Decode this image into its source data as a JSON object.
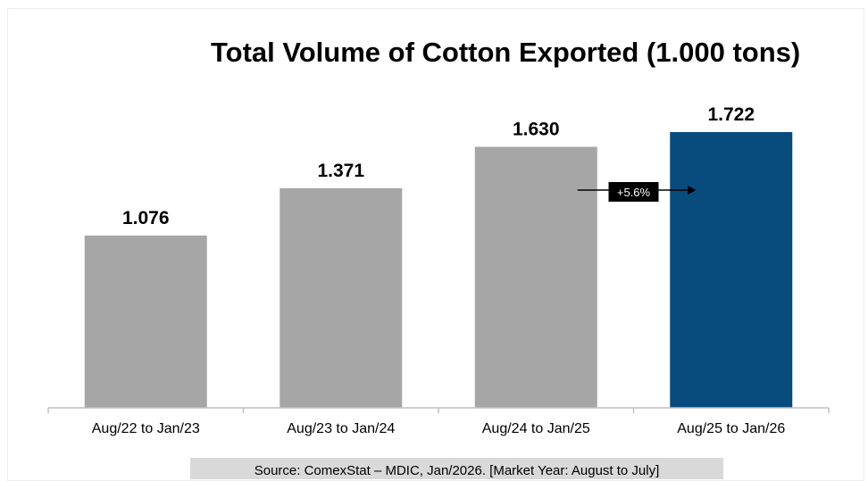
{
  "chart_data": {
    "type": "bar",
    "title": "Total Volume of Cotton Exported (1.000 tons)",
    "xlabel": "",
    "ylabel": "",
    "categories": [
      "Aug/22 to Jan/23",
      "Aug/23 to Jan/24",
      "Aug/24 to Jan/25",
      "Aug/25 to Jan/26"
    ],
    "values": [
      1076,
      1371,
      1630,
      1722
    ],
    "value_labels": [
      "1.076",
      "1.371",
      "1.630",
      "1.722"
    ],
    "ylim": [
      0,
      1722
    ],
    "grid": false,
    "legend": "none",
    "colors": {
      "default_bar": "#a6a6a6",
      "highlight_bar": "#084b7d",
      "axis": "#bfbfbf",
      "annotation_bg": "#000000",
      "annotation_text": "#ffffff"
    },
    "highlight_index": 3,
    "annotation": {
      "text": "+5.6%",
      "from_category": "Aug/24 to Jan/25",
      "to_category": "Aug/25 to Jan/26"
    }
  },
  "source": "Source: ComexStat – MDIC, Jan/2026. [Market Year: August to July]"
}
